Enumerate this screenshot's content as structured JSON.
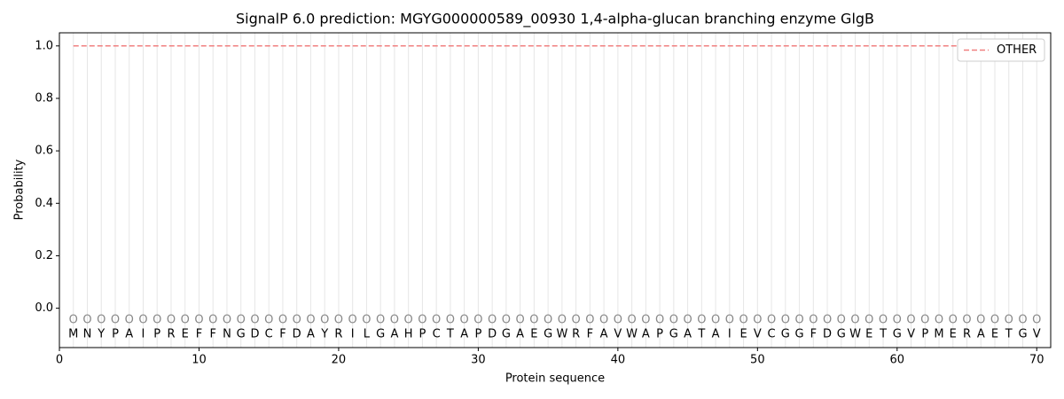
{
  "chart_data": {
    "type": "line",
    "title": "SignalP 6.0 prediction: MGYG000000589_00930 1,4-alpha-glucan branching enzyme GlgB",
    "xlabel": "Protein sequence",
    "ylabel": "Probability",
    "x": [
      1,
      2,
      3,
      4,
      5,
      6,
      7,
      8,
      9,
      10,
      11,
      12,
      13,
      14,
      15,
      16,
      17,
      18,
      19,
      20,
      21,
      22,
      23,
      24,
      25,
      26,
      27,
      28,
      29,
      30,
      31,
      32,
      33,
      34,
      35,
      36,
      37,
      38,
      39,
      40,
      41,
      42,
      43,
      44,
      45,
      46,
      47,
      48,
      49,
      50,
      51,
      52,
      53,
      54,
      55,
      56,
      57,
      58,
      59,
      60,
      61,
      62,
      63,
      64,
      65,
      66,
      67,
      68,
      69,
      70
    ],
    "sequence": [
      "M",
      "N",
      "Y",
      "P",
      "A",
      "I",
      "P",
      "R",
      "E",
      "F",
      "F",
      "N",
      "G",
      "D",
      "C",
      "F",
      "D",
      "A",
      "Y",
      "R",
      "I",
      "L",
      "G",
      "A",
      "H",
      "P",
      "C",
      "T",
      "A",
      "P",
      "D",
      "G",
      "A",
      "E",
      "G",
      "W",
      "R",
      "F",
      "A",
      "V",
      "W",
      "A",
      "P",
      "G",
      "A",
      "T",
      "A",
      "I",
      "E",
      "V",
      "C",
      "G",
      "G",
      "F",
      "D",
      "G",
      "W",
      "E",
      "T",
      "G",
      "V",
      "P",
      "M",
      "E",
      "R",
      "A",
      "E",
      "T",
      "G",
      "V"
    ],
    "predicted_labels": [
      "O",
      "O",
      "O",
      "O",
      "O",
      "O",
      "O",
      "O",
      "O",
      "O",
      "O",
      "O",
      "O",
      "O",
      "O",
      "O",
      "O",
      "O",
      "O",
      "O",
      "O",
      "O",
      "O",
      "O",
      "O",
      "O",
      "O",
      "O",
      "O",
      "O",
      "O",
      "O",
      "O",
      "O",
      "O",
      "O",
      "O",
      "O",
      "O",
      "O",
      "O",
      "O",
      "O",
      "O",
      "O",
      "O",
      "O",
      "O",
      "O",
      "O",
      "O",
      "O",
      "O",
      "O",
      "O",
      "O",
      "O",
      "O",
      "O",
      "O",
      "O",
      "O",
      "O",
      "O",
      "O",
      "O",
      "O",
      "O",
      "O",
      "O"
    ],
    "series": [
      {
        "name": "OTHER",
        "color": "#f08080",
        "style": "dashed",
        "values": [
          1,
          1,
          1,
          1,
          1,
          1,
          1,
          1,
          1,
          1,
          1,
          1,
          1,
          1,
          1,
          1,
          1,
          1,
          1,
          1,
          1,
          1,
          1,
          1,
          1,
          1,
          1,
          1,
          1,
          1,
          1,
          1,
          1,
          1,
          1,
          1,
          1,
          1,
          1,
          1,
          1,
          1,
          1,
          1,
          1,
          1,
          1,
          1,
          1,
          1,
          1,
          1,
          1,
          1,
          1,
          1,
          1,
          1,
          1,
          1,
          1,
          1,
          1,
          1,
          1,
          1,
          1,
          1,
          1,
          1
        ]
      }
    ],
    "xlim": [
      0,
      71
    ],
    "ylim": [
      -0.15,
      1.05
    ],
    "xticks": [
      0,
      10,
      20,
      30,
      40,
      50,
      60,
      70
    ],
    "yticks": [
      {
        "value": 0,
        "label": "0.0"
      },
      0.2,
      0.4,
      0.6,
      0.8,
      {
        "value": 1,
        "label": "1.0"
      }
    ],
    "legend": "upper right"
  }
}
